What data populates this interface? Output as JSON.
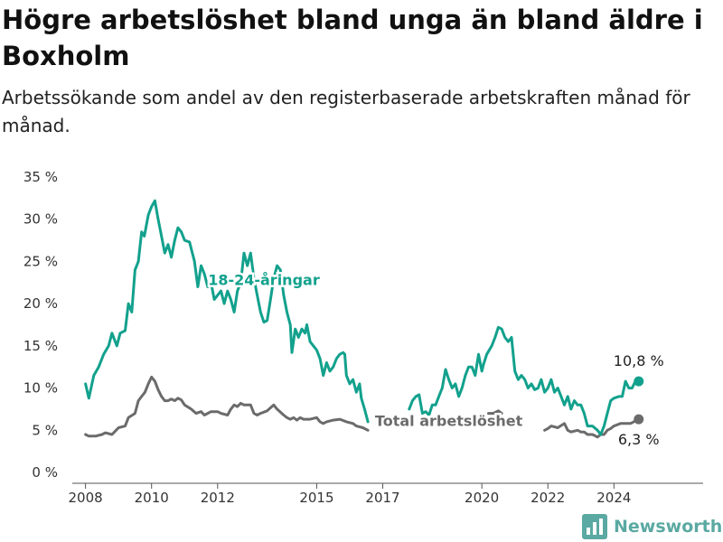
{
  "title": "Högre arbetslöshet bland unga än bland äldre i Boxholm",
  "subtitle": "Arbetssökande som andel av den registerbaserade arbetskraften månad för månad.",
  "brand": {
    "name": "Newsworthy",
    "color": "#5aa9a2",
    "icon": "newsworthy-logo-icon"
  },
  "chart_data": {
    "type": "line",
    "title": "",
    "xlabel": "",
    "ylabel": "",
    "ylim": [
      0,
      35
    ],
    "xlim": [
      2007.6,
      2026.7
    ],
    "yticks": [
      0,
      5,
      10,
      15,
      20,
      25,
      30,
      35
    ],
    "ytick_labels": [
      "0 %",
      "5 %",
      "10 %",
      "15 %",
      "20 %",
      "25 %",
      "30 %",
      "35 %"
    ],
    "xticks": [
      2008,
      2010,
      2012,
      2015,
      2017,
      2020,
      2022,
      2024
    ],
    "xtick_labels": [
      "2008",
      "2010",
      "2012",
      "2015",
      "2017",
      "2020",
      "2022",
      "2024"
    ],
    "grid": false,
    "series": [
      {
        "name": "18-24-åringar",
        "color": "#12a18d",
        "label": "18-24-åringar",
        "end_label": "10,8 %",
        "points": [
          [
            2008.0,
            10.5
          ],
          [
            2008.1,
            8.8
          ],
          [
            2008.25,
            11.5
          ],
          [
            2008.4,
            12.5
          ],
          [
            2008.55,
            14.0
          ],
          [
            2008.7,
            15.0
          ],
          [
            2008.8,
            16.5
          ],
          [
            2008.95,
            15.0
          ],
          [
            2009.05,
            16.5
          ],
          [
            2009.2,
            16.8
          ],
          [
            2009.3,
            20.0
          ],
          [
            2009.4,
            19.0
          ],
          [
            2009.5,
            24.0
          ],
          [
            2009.6,
            25.0
          ],
          [
            2009.7,
            28.5
          ],
          [
            2009.78,
            28.0
          ],
          [
            2009.9,
            30.5
          ],
          [
            2010.0,
            31.5
          ],
          [
            2010.1,
            32.2
          ],
          [
            2010.2,
            30.0
          ],
          [
            2010.3,
            28.0
          ],
          [
            2010.4,
            26.0
          ],
          [
            2010.5,
            27.0
          ],
          [
            2010.6,
            25.5
          ],
          [
            2010.7,
            27.5
          ],
          [
            2010.8,
            29.0
          ],
          [
            2010.9,
            28.5
          ],
          [
            2011.0,
            27.5
          ],
          [
            2011.15,
            27.3
          ],
          [
            2011.3,
            25.0
          ],
          [
            2011.4,
            22.0
          ],
          [
            2011.5,
            24.5
          ],
          [
            2011.6,
            23.5
          ],
          [
            2011.7,
            22.0
          ],
          [
            2011.8,
            22.5
          ],
          [
            2011.9,
            20.5
          ],
          [
            2012.0,
            21.0
          ],
          [
            2012.1,
            21.5
          ],
          [
            2012.2,
            20.0
          ],
          [
            2012.3,
            21.5
          ],
          [
            2012.4,
            20.5
          ],
          [
            2012.5,
            19.0
          ],
          [
            2012.6,
            21.5
          ],
          [
            2012.7,
            22.5
          ],
          [
            2012.8,
            26.0
          ],
          [
            2012.9,
            24.5
          ],
          [
            2013.0,
            26.0
          ],
          [
            2013.1,
            23.0
          ],
          [
            2013.2,
            21.0
          ],
          [
            2013.3,
            19.0
          ],
          [
            2013.4,
            17.8
          ],
          [
            2013.5,
            18.0
          ],
          [
            2013.6,
            20.5
          ],
          [
            2013.7,
            23.0
          ],
          [
            2013.8,
            24.5
          ],
          [
            2013.9,
            24.0
          ],
          [
            2014.0,
            21.0
          ],
          [
            2014.1,
            19.0
          ],
          [
            2014.2,
            17.5
          ],
          [
            2014.25,
            14.2
          ],
          [
            2014.35,
            17.0
          ],
          [
            2014.45,
            16.0
          ],
          [
            2014.55,
            17.0
          ],
          [
            2014.65,
            16.5
          ],
          [
            2014.7,
            17.5
          ],
          [
            2014.8,
            15.5
          ],
          [
            2014.9,
            15.0
          ],
          [
            2015.0,
            14.5
          ],
          [
            2015.1,
            13.5
          ],
          [
            2015.2,
            11.5
          ],
          [
            2015.3,
            13.0
          ],
          [
            2015.4,
            12.0
          ],
          [
            2015.5,
            12.5
          ],
          [
            2015.6,
            13.5
          ],
          [
            2015.7,
            14.0
          ],
          [
            2015.8,
            14.2
          ],
          [
            2015.85,
            14.0
          ],
          [
            2015.9,
            11.5
          ],
          [
            2016.0,
            10.5
          ],
          [
            2016.1,
            11.0
          ],
          [
            2016.2,
            9.5
          ],
          [
            2016.3,
            10.5
          ],
          [
            2016.35,
            8.8
          ],
          [
            2016.45,
            7.5
          ],
          [
            2016.55,
            6.0
          ]
        ],
        "points_after_label": [
          [
            2017.8,
            7.5
          ],
          [
            2017.9,
            8.5
          ],
          [
            2018.0,
            9.0
          ],
          [
            2018.1,
            9.2
          ],
          [
            2018.2,
            7.0
          ],
          [
            2018.3,
            7.2
          ],
          [
            2018.4,
            6.8
          ],
          [
            2018.5,
            8.0
          ],
          [
            2018.6,
            8.0
          ],
          [
            2018.7,
            9.0
          ],
          [
            2018.8,
            10.0
          ],
          [
            2018.9,
            12.2
          ],
          [
            2019.0,
            11.0
          ],
          [
            2019.1,
            10.0
          ],
          [
            2019.2,
            10.5
          ],
          [
            2019.3,
            9.0
          ],
          [
            2019.4,
            10.0
          ],
          [
            2019.5,
            11.5
          ],
          [
            2019.6,
            12.5
          ],
          [
            2019.7,
            12.5
          ],
          [
            2019.8,
            11.5
          ],
          [
            2019.9,
            14.0
          ],
          [
            2020.0,
            12.0
          ],
          [
            2020.05,
            12.8
          ],
          [
            2020.15,
            14.0
          ],
          [
            2020.3,
            15.0
          ],
          [
            2020.4,
            16.0
          ],
          [
            2020.5,
            17.2
          ],
          [
            2020.6,
            17.0
          ],
          [
            2020.7,
            16.0
          ],
          [
            2020.8,
            15.5
          ],
          [
            2020.9,
            16.0
          ],
          [
            2021.0,
            12.0
          ],
          [
            2021.1,
            11.0
          ],
          [
            2021.2,
            11.5
          ],
          [
            2021.3,
            11.0
          ],
          [
            2021.4,
            10.0
          ],
          [
            2021.5,
            10.5
          ],
          [
            2021.6,
            9.8
          ],
          [
            2021.7,
            10.0
          ],
          [
            2021.8,
            11.0
          ],
          [
            2021.9,
            9.5
          ],
          [
            2022.0,
            10.0
          ],
          [
            2022.1,
            11.0
          ],
          [
            2022.2,
            9.5
          ],
          [
            2022.3,
            10.0
          ],
          [
            2022.4,
            9.0
          ],
          [
            2022.5,
            8.0
          ],
          [
            2022.6,
            9.0
          ],
          [
            2022.7,
            7.5
          ],
          [
            2022.8,
            8.5
          ],
          [
            2022.9,
            8.0
          ],
          [
            2023.0,
            8.0
          ],
          [
            2023.1,
            7.0
          ],
          [
            2023.2,
            5.5
          ],
          [
            2023.35,
            5.5
          ],
          [
            2023.5,
            5.0
          ],
          [
            2023.6,
            4.5
          ],
          [
            2023.7,
            5.5
          ],
          [
            2023.8,
            7.0
          ],
          [
            2023.9,
            8.5
          ],
          [
            2024.0,
            8.8
          ],
          [
            2024.15,
            9.0
          ],
          [
            2024.25,
            9.0
          ],
          [
            2024.35,
            10.8
          ],
          [
            2024.45,
            10.0
          ],
          [
            2024.55,
            10.0
          ],
          [
            2024.65,
            10.8
          ],
          [
            2024.75,
            10.8
          ]
        ]
      },
      {
        "name": "Total arbetslöshet",
        "color": "#6b6b6b",
        "label": "Total arbetslöshet",
        "end_label": "6,3 %",
        "points": [
          [
            2008.0,
            4.5
          ],
          [
            2008.1,
            4.3
          ],
          [
            2008.3,
            4.3
          ],
          [
            2008.5,
            4.5
          ],
          [
            2008.6,
            4.7
          ],
          [
            2008.8,
            4.5
          ],
          [
            2009.0,
            5.3
          ],
          [
            2009.2,
            5.5
          ],
          [
            2009.3,
            6.5
          ],
          [
            2009.5,
            7.0
          ],
          [
            2009.6,
            8.5
          ],
          [
            2009.7,
            9.0
          ],
          [
            2009.8,
            9.5
          ],
          [
            2009.9,
            10.5
          ],
          [
            2010.0,
            11.3
          ],
          [
            2010.1,
            10.8
          ],
          [
            2010.2,
            9.8
          ],
          [
            2010.3,
            9.0
          ],
          [
            2010.4,
            8.5
          ],
          [
            2010.5,
            8.5
          ],
          [
            2010.6,
            8.7
          ],
          [
            2010.7,
            8.5
          ],
          [
            2010.8,
            8.8
          ],
          [
            2010.9,
            8.6
          ],
          [
            2011.0,
            8.0
          ],
          [
            2011.2,
            7.5
          ],
          [
            2011.35,
            7.0
          ],
          [
            2011.5,
            7.2
          ],
          [
            2011.6,
            6.8
          ],
          [
            2011.8,
            7.2
          ],
          [
            2012.0,
            7.2
          ],
          [
            2012.1,
            7.0
          ],
          [
            2012.3,
            6.8
          ],
          [
            2012.4,
            7.5
          ],
          [
            2012.5,
            8.0
          ],
          [
            2012.6,
            7.8
          ],
          [
            2012.7,
            8.2
          ],
          [
            2012.8,
            8.0
          ],
          [
            2013.0,
            8.0
          ],
          [
            2013.1,
            7.0
          ],
          [
            2013.2,
            6.8
          ],
          [
            2013.3,
            7.0
          ],
          [
            2013.5,
            7.3
          ],
          [
            2013.7,
            8.0
          ],
          [
            2013.8,
            7.5
          ],
          [
            2014.0,
            6.8
          ],
          [
            2014.1,
            6.5
          ],
          [
            2014.2,
            6.3
          ],
          [
            2014.3,
            6.5
          ],
          [
            2014.4,
            6.2
          ],
          [
            2014.5,
            6.5
          ],
          [
            2014.6,
            6.3
          ],
          [
            2014.8,
            6.3
          ],
          [
            2015.0,
            6.5
          ],
          [
            2015.1,
            6.0
          ],
          [
            2015.2,
            5.8
          ],
          [
            2015.3,
            6.0
          ],
          [
            2015.5,
            6.2
          ],
          [
            2015.7,
            6.3
          ],
          [
            2015.9,
            6.0
          ],
          [
            2016.1,
            5.8
          ],
          [
            2016.2,
            5.5
          ],
          [
            2016.4,
            5.3
          ],
          [
            2016.55,
            5.0
          ]
        ],
        "points_after_label": [
          [
            2020.2,
            7.0
          ],
          [
            2020.35,
            7.0
          ],
          [
            2020.5,
            7.3
          ],
          [
            2020.6,
            7.0
          ]
        ],
        "points_tail": [
          [
            2021.9,
            5.0
          ],
          [
            2022.0,
            5.2
          ],
          [
            2022.1,
            5.5
          ],
          [
            2022.3,
            5.3
          ],
          [
            2022.5,
            5.8
          ],
          [
            2022.6,
            5.0
          ],
          [
            2022.7,
            4.8
          ],
          [
            2022.9,
            5.0
          ],
          [
            2023.0,
            4.8
          ],
          [
            2023.1,
            4.8
          ],
          [
            2023.2,
            4.5
          ],
          [
            2023.35,
            4.5
          ],
          [
            2023.5,
            4.2
          ],
          [
            2023.6,
            4.5
          ],
          [
            2023.7,
            4.5
          ],
          [
            2023.8,
            5.0
          ],
          [
            2023.9,
            5.2
          ],
          [
            2024.0,
            5.5
          ],
          [
            2024.2,
            5.8
          ],
          [
            2024.35,
            5.8
          ],
          [
            2024.5,
            5.8
          ],
          [
            2024.6,
            6.0
          ],
          [
            2024.75,
            6.3
          ]
        ]
      }
    ]
  }
}
